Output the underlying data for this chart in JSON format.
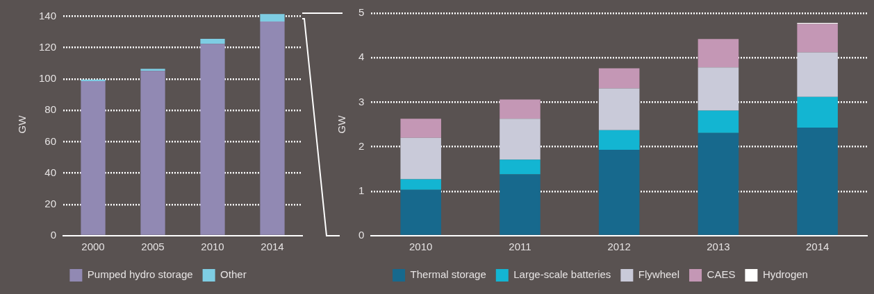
{
  "chart_data": [
    {
      "type": "bar",
      "categories": [
        "2000",
        "2005",
        "2010",
        "2014"
      ],
      "stacked": true,
      "ylabel": "GW",
      "ylim": [
        0,
        142
      ],
      "yticks": [
        0,
        20,
        40,
        60,
        80,
        100,
        120,
        140
      ],
      "grid": "y",
      "legend": "bottom",
      "series": [
        {
          "name": "Pumped hydro storage",
          "color": "#9189b3",
          "values": [
            98.6,
            105.2,
            122.4,
            136.7
          ]
        },
        {
          "name": "Other",
          "color": "#7ecde3",
          "values": [
            1,
            1.3,
            3.2,
            4.8
          ]
        }
      ]
    },
    {
      "type": "bar",
      "categories": [
        "2010",
        "2011",
        "2012",
        "2013",
        "2014"
      ],
      "stacked": true,
      "ylabel": "GW",
      "ylim": [
        0,
        5
      ],
      "yticks": [
        0,
        1,
        2,
        3,
        4,
        5
      ],
      "grid": "y",
      "legend": "bottom",
      "series": [
        {
          "name": "Thermal storage",
          "color": "#17698d",
          "values": [
            1.03,
            1.38,
            1.93,
            2.31,
            2.43
          ]
        },
        {
          "name": "Large-scale batteries",
          "color": "#13b5d2",
          "values": [
            0.24,
            0.33,
            0.44,
            0.5,
            0.69
          ]
        },
        {
          "name": "Flywheel",
          "color": "#c9cad9",
          "values": [
            0.93,
            0.92,
            0.94,
            0.97,
            1.0
          ]
        },
        {
          "name": "CAES",
          "color": "#c497b5",
          "values": [
            0.43,
            0.43,
            0.45,
            0.64,
            0.64
          ]
        },
        {
          "name": "Hydrogen",
          "color": "#ffffff",
          "values": [
            0,
            0,
            0,
            0,
            0.02
          ]
        }
      ]
    }
  ]
}
